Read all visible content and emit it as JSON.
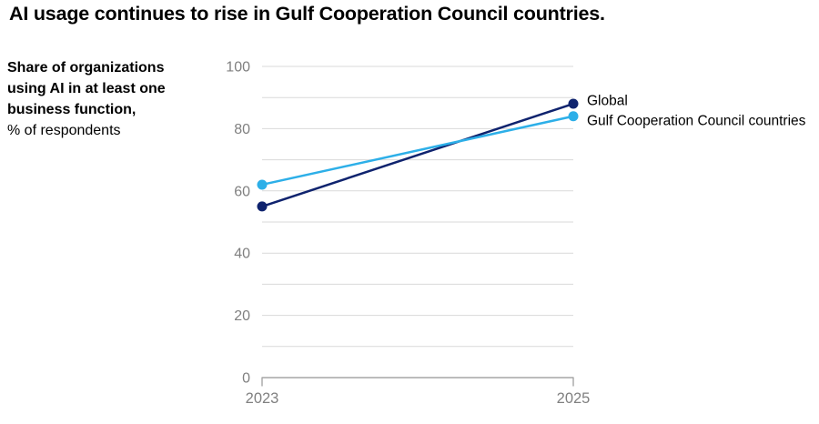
{
  "title": "AI usage continues to rise in Gulf Cooperation Council countries.",
  "aside": {
    "bold_lines": [
      "Share of organizations",
      "using AI in at least one",
      "business function,"
    ],
    "regular_line": "% of respondents"
  },
  "chart_data": {
    "type": "line",
    "title": "AI usage continues to rise in Gulf Cooperation Council countries.",
    "ylabel": "Share of organizations using AI in at least one business function, % of respondents",
    "xlabel": "",
    "categories": [
      "2023",
      "2025"
    ],
    "series": [
      {
        "name": "Global",
        "values": [
          55,
          88
        ],
        "color": "#0f236e"
      },
      {
        "name": "Gulf Cooperation Council countries",
        "values": [
          62,
          84
        ],
        "color": "#2dafe8"
      }
    ],
    "ylim": [
      0,
      100
    ],
    "grid": true,
    "grid_step": 10,
    "ytick_values": [
      0,
      20,
      40,
      60,
      80,
      100
    ],
    "legend_position": "right-of-last-point",
    "grid_color": "#d9d9d9",
    "axis_color": "#a6a6a6",
    "tick_label_color": "#808080",
    "series_label_color": "#000000"
  }
}
